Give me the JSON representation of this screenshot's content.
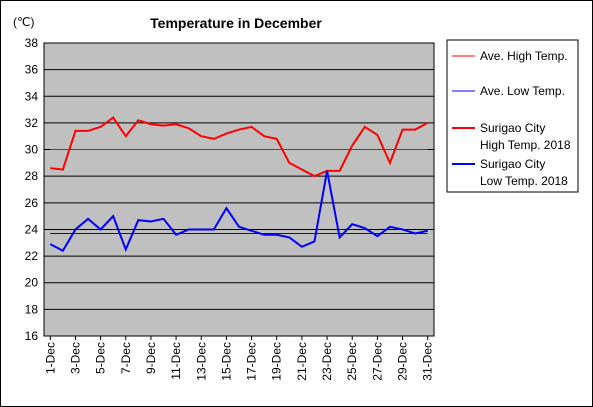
{
  "chart_data": {
    "type": "line",
    "title": "Temperature in December",
    "unit_label": "(℃)",
    "ylim": [
      16,
      38
    ],
    "y_ticks": [
      "16",
      "18",
      "20",
      "22",
      "24",
      "26",
      "28",
      "30",
      "32",
      "34",
      "36",
      "38"
    ],
    "x": [
      "1-Dec",
      "2-Dec",
      "3-Dec",
      "4-Dec",
      "5-Dec",
      "6-Dec",
      "7-Dec",
      "8-Dec",
      "9-Dec",
      "10-Dec",
      "11-Dec",
      "12-Dec",
      "13-Dec",
      "14-Dec",
      "15-Dec",
      "16-Dec",
      "17-Dec",
      "18-Dec",
      "19-Dec",
      "20-Dec",
      "21-Dec",
      "22-Dec",
      "23-Dec",
      "24-Dec",
      "25-Dec",
      "26-Dec",
      "27-Dec",
      "28-Dec",
      "29-Dec",
      "30-Dec",
      "31-Dec"
    ],
    "x_tick_labels": [
      "1-Dec",
      "3-Dec",
      "5-Dec",
      "7-Dec",
      "9-Dec",
      "11-Dec",
      "13-Dec",
      "15-Dec",
      "17-Dec",
      "19-Dec",
      "21-Dec",
      "23-Dec",
      "25-Dec",
      "27-Dec",
      "29-Dec",
      "31-Dec"
    ],
    "grid": true,
    "legend_position": "right",
    "series": [
      {
        "name": "Ave. High Temp.",
        "color": "#ff0000",
        "width": 1,
        "values": [
          30,
          30,
          30,
          30,
          30,
          30,
          30,
          30,
          30,
          30,
          30,
          30,
          30,
          30,
          30,
          30,
          30,
          30,
          30,
          30,
          30,
          30,
          30,
          30,
          30,
          30,
          30,
          30,
          30,
          30,
          30
        ]
      },
      {
        "name": "Ave. Low Temp.",
        "color": "#0000ff",
        "width": 1,
        "values": [
          23.7,
          23.7,
          23.7,
          23.7,
          23.7,
          23.7,
          23.7,
          23.7,
          23.7,
          23.7,
          23.7,
          23.7,
          23.7,
          23.7,
          23.7,
          23.7,
          23.7,
          23.7,
          23.7,
          23.7,
          23.7,
          23.7,
          23.7,
          23.7,
          23.7,
          23.7,
          23.7,
          23.7,
          23.7,
          23.7,
          23.7
        ]
      },
      {
        "name_lines": [
          "Surigao City",
          "High Temp. 2018"
        ],
        "color": "#ff0000",
        "width": 2,
        "values": [
          28.6,
          28.5,
          31.4,
          31.4,
          31.7,
          32.4,
          31.0,
          32.2,
          31.9,
          31.8,
          31.9,
          31.6,
          31.0,
          30.8,
          31.2,
          31.5,
          31.7,
          31.0,
          30.8,
          29.0,
          28.5,
          28.0,
          28.4,
          28.4,
          30.3,
          31.7,
          31.1,
          29.0,
          31.5,
          31.5,
          32.0
        ]
      },
      {
        "name_lines": [
          "Surigao City",
          "Low Temp. 2018"
        ],
        "color": "#0000ff",
        "width": 2,
        "values": [
          22.9,
          22.4,
          24.0,
          24.8,
          24.0,
          25.0,
          22.5,
          24.7,
          24.6,
          24.8,
          23.6,
          24.0,
          24.0,
          24.0,
          25.6,
          24.2,
          23.9,
          23.6,
          23.6,
          23.4,
          22.7,
          23.1,
          28.4,
          23.4,
          24.4,
          24.1,
          23.5,
          24.2,
          24.0,
          23.7,
          23.9
        ]
      }
    ]
  }
}
